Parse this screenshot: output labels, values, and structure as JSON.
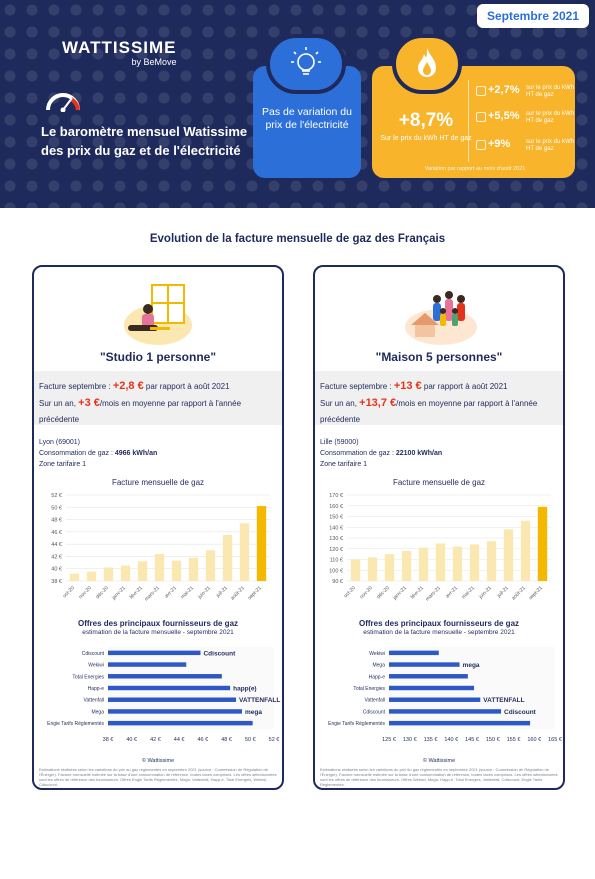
{
  "header": {
    "date_badge": "Septembre 2021",
    "logo_main": "WATTISSIME",
    "logo_sub": "by BeMove",
    "title": "Le baromètre mensuel Watissime des prix du gaz et de l'électricité",
    "electricity": {
      "text": "Pas de variation du prix de l'électricité",
      "icon": "lightbulb-icon"
    },
    "gas": {
      "main_value": "+8,7%",
      "main_label": "Sur le prix du kWh HT de gaz",
      "icon": "flame-icon",
      "items": [
        {
          "value": "+2,7%",
          "label": "sur le prix du kWh HT de gaz",
          "icon": "stove-icon"
        },
        {
          "value": "+5,5%",
          "label": "sur le prix du kWh HT de gaz",
          "icon": "water-heater-icon"
        },
        {
          "value": "+9%",
          "label": "sur le prix du kWh HT de gaz",
          "icon": "radiator-icon"
        }
      ],
      "footnote": "Variation par rapport au mois d'août 2021"
    }
  },
  "section_title": "Evolution de la facture mensuelle de gaz des Français",
  "cards": [
    {
      "title": "\"Studio 1 personne\"",
      "illustration": "person-at-window-illustration",
      "invoice": {
        "line1_prefix": "Facture septembre : ",
        "line1_value": "+2,8 €",
        "line1_suffix": " par rapport à août 2021",
        "line2_prefix": "Sur un an, ",
        "line2_value": "+3 €",
        "line2_suffix": "/mois en moyenne par rapport à l'année précédente"
      },
      "meta": {
        "city": "Lyon (69001)",
        "consumption_label": "Consommation de gaz : ",
        "consumption_value": "4966 kWh/an",
        "zone": "Zone tarifaire 1"
      },
      "chart_title": "Facture mensuelle de gaz",
      "suppliers_title": "Offres des principaux fournisseurs de gaz",
      "suppliers_sub": "estimation de la facture mensuelle - septembre 2021",
      "copyright": "© Wattissime",
      "note": "Estimations réalisées selon les variations du prix du gaz réglementés en septembre 2021 (source : Commission de Régulation de l'Énergie). Facture mensuelle estimée sur la base d'une consommation de référence, toutes taxes comprises. Les offres sélectionnées sont les offres de référence des fournisseurs. Offres Engie Tarifs Réglementés, Mega, Vattenfall, Happ-e, Total Energies, Wekiwi, Cdiscount."
    },
    {
      "title": "\"Maison 5 personnes\"",
      "illustration": "family-house-illustration",
      "invoice": {
        "line1_prefix": "Facture septembre : ",
        "line1_value": "+13 €",
        "line1_suffix": " par rapport à août 2021",
        "line2_prefix": "Sur un an, ",
        "line2_value": "+13,7 €",
        "line2_suffix": "/mois en moyenne par rapport à l'année précédente"
      },
      "meta": {
        "city": "Lille (59000)",
        "consumption_label": "Consommation de gaz : ",
        "consumption_value": "22100 kWh/an",
        "zone": "Zone tarifaire 1"
      },
      "chart_title": "Facture mensuelle de gaz",
      "suppliers_title": "Offres des principaux fournisseurs de gaz",
      "suppliers_sub": "estimation de la facture mensuelle - septembre 2021",
      "copyright": "© Wattissime",
      "note": "Estimations réalisées selon les variations du prix du gaz réglementés en septembre 2021 (source : Commission de Régulation de l'Énergie). Facture mensuelle estimée sur la base d'une consommation de référence, toutes taxes comprises. Les offres sélectionnées sont les offres de référence des fournisseurs. Offres Wekiwi, Mega, Happ-e, Total Energies, Vattenfall, Cdiscount, Engie Tarifs Réglementés."
    }
  ],
  "colors": {
    "navy": "#1f2a5c",
    "blue": "#2d6fd8",
    "yellow": "#f8b42b",
    "bar_pale": "#fbe7b0",
    "bar_last": "#f5b800",
    "red": "#e5331b"
  },
  "chart_data": [
    {
      "type": "bar",
      "title": "Facture mensuelle de gaz",
      "categories": [
        "oct-20",
        "nov-20",
        "déc-20",
        "janv-21",
        "févr-21",
        "mars-21",
        "avr-21",
        "mai-21",
        "juin-21",
        "juil-21",
        "août-21",
        "sept-21"
      ],
      "values": [
        39.2,
        39.5,
        40.2,
        40.5,
        41.2,
        42.4,
        41.3,
        41.8,
        43.0,
        45.5,
        47.4,
        50.2
      ],
      "yticks": [
        38,
        40,
        42,
        44,
        46,
        48,
        50,
        52
      ],
      "ylim": [
        38,
        52
      ]
    },
    {
      "type": "bar",
      "title": "Facture mensuelle de gaz",
      "categories": [
        "oct-20",
        "nov-20",
        "déc-20",
        "janv-21",
        "févr-21",
        "mars-21",
        "avr-21",
        "mai-21",
        "juin-21",
        "juil-21",
        "août-21",
        "sept-21"
      ],
      "values": [
        110,
        112,
        115,
        118,
        121,
        125,
        122,
        124,
        127,
        138,
        146,
        159
      ],
      "yticks": [
        90,
        100,
        110,
        120,
        130,
        140,
        150,
        160,
        170
      ],
      "ylim": [
        90,
        170
      ]
    },
    {
      "type": "bar",
      "orientation": "horizontal",
      "title": "Offres des principaux fournisseurs de gaz",
      "categories": [
        "Cdiscount",
        "Wekiwi",
        "Total Energies",
        "Happ-e",
        "Vattenfall",
        "Mega",
        "Engie Tarifs Réglementés"
      ],
      "logos": [
        "Cdiscount",
        "",
        "",
        "happ(e)",
        "VATTENFALL",
        "mega",
        ""
      ],
      "values": [
        45.8,
        44.6,
        47.6,
        48.3,
        48.8,
        49.3,
        50.2
      ],
      "xticks": [
        38,
        40,
        42,
        44,
        46,
        48,
        50,
        52
      ],
      "xtick_labels": [
        "38 €",
        "40 €",
        "42 €",
        "44 €",
        "46 €",
        "48 €",
        "50 €",
        "52 €"
      ],
      "xlim": [
        38,
        52
      ]
    },
    {
      "type": "bar",
      "orientation": "horizontal",
      "title": "Offres des principaux fournisseurs de gaz",
      "categories": [
        "Wekiwi",
        "Mega",
        "Happ-e",
        "Total Energies",
        "Vattenfall",
        "Cdiscount",
        "Engie Tarifs Réglementés"
      ],
      "logos": [
        "",
        "mega",
        "",
        "",
        "VATTENFALL",
        "Cdiscount",
        ""
      ],
      "values": [
        137,
        142,
        144,
        145.5,
        147,
        152,
        159
      ],
      "xticks": [
        125,
        130,
        135,
        140,
        145,
        150,
        155,
        160,
        165
      ],
      "xtick_labels": [
        "125 €",
        "130 €",
        "135 €",
        "140 €",
        "145 €",
        "150 €",
        "155 €",
        "160 €",
        "165 €"
      ],
      "xlim": [
        125,
        165
      ]
    }
  ]
}
